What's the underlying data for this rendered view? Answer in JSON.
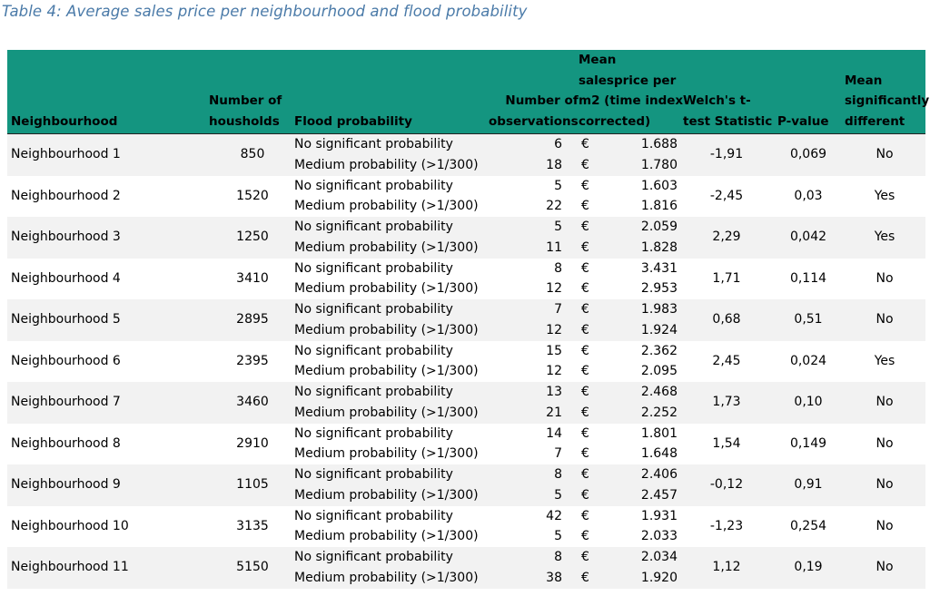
{
  "caption": "Table 4: Average sales price per neighbourhood and flood probability",
  "headers": {
    "neighbourhood": "Neighbourhood",
    "households": [
      "Number of",
      "housholds"
    ],
    "flood": "Flood probability",
    "observations": [
      "Number of",
      "observations"
    ],
    "mean_price": [
      "Mean",
      "salesprice per",
      "m2 (time index",
      "corrected)"
    ],
    "welch": [
      "Welch's t-",
      "test Statistic"
    ],
    "pvalue": "P-value",
    "mean_diff": [
      "Mean",
      "significantly",
      "different"
    ]
  },
  "currency": "€",
  "flood_labels": [
    "No significant probability",
    "Medium probability (>1/300)"
  ],
  "rows": [
    {
      "name": "Neighbourhood 1",
      "households": "850",
      "obs": [
        "6",
        "18"
      ],
      "price": [
        "1.688",
        "1.780"
      ],
      "t": "-1,91",
      "p": "0,069",
      "sig": "No"
    },
    {
      "name": "Neighbourhood 2",
      "households": "1520",
      "obs": [
        "5",
        "22"
      ],
      "price": [
        "1.603",
        "1.816"
      ],
      "t": "-2,45",
      "p": "0,03",
      "sig": "Yes"
    },
    {
      "name": "Neighbourhood 3",
      "households": "1250",
      "obs": [
        "5",
        "11"
      ],
      "price": [
        "2.059",
        "1.828"
      ],
      "t": "2,29",
      "p": "0,042",
      "sig": "Yes"
    },
    {
      "name": "Neighbourhood 4",
      "households": "3410",
      "obs": [
        "8",
        "12"
      ],
      "price": [
        "3.431",
        "2.953"
      ],
      "t": "1,71",
      "p": "0,114",
      "sig": "No"
    },
    {
      "name": "Neighbourhood 5",
      "households": "2895",
      "obs": [
        "7",
        "12"
      ],
      "price": [
        "1.983",
        "1.924"
      ],
      "t": "0,68",
      "p": "0,51",
      "sig": "No"
    },
    {
      "name": "Neighbourhood 6",
      "households": "2395",
      "obs": [
        "15",
        "12"
      ],
      "price": [
        "2.362",
        "2.095"
      ],
      "t": "2,45",
      "p": "0,024",
      "sig": "Yes"
    },
    {
      "name": "Neighbourhood 7",
      "households": "3460",
      "obs": [
        "13",
        "21"
      ],
      "price": [
        "2.468",
        "2.252"
      ],
      "t": "1,73",
      "p": "0,10",
      "sig": "No"
    },
    {
      "name": "Neighbourhood 8",
      "households": "2910",
      "obs": [
        "14",
        "7"
      ],
      "price": [
        "1.801",
        "1.648"
      ],
      "t": "1,54",
      "p": "0,149",
      "sig": "No"
    },
    {
      "name": "Neighbourhood 9",
      "households": "1105",
      "obs": [
        "8",
        "5"
      ],
      "price": [
        "2.406",
        "2.457"
      ],
      "t": "-0,12",
      "p": "0,91",
      "sig": "No"
    },
    {
      "name": "Neighbourhood 10",
      "households": "3135",
      "obs": [
        "42",
        "5"
      ],
      "price": [
        "1.931",
        "2.033"
      ],
      "t": "-1,23",
      "p": "0,254",
      "sig": "No"
    },
    {
      "name": "Neighbourhood 11",
      "households": "5150",
      "obs": [
        "8",
        "38"
      ],
      "price": [
        "2.034",
        "1.920"
      ],
      "t": "1,12",
      "p": "0,19",
      "sig": "No"
    }
  ],
  "colors": {
    "header_bg": "#149580",
    "caption": "#4a7aa8",
    "alt_row": "#f2f2f2"
  }
}
